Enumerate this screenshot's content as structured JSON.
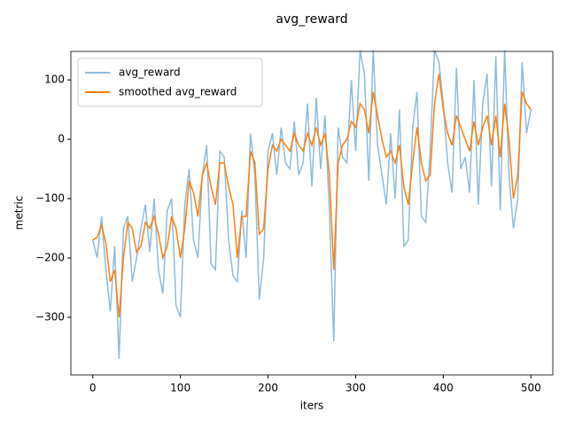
{
  "chart_data": {
    "type": "line",
    "title": "avg_reward",
    "x_label": "iters",
    "y_label": "metric",
    "x": [
      0,
      5,
      10,
      15,
      20,
      25,
      30,
      35,
      40,
      45,
      50,
      55,
      60,
      65,
      70,
      75,
      80,
      85,
      90,
      95,
      100,
      105,
      110,
      115,
      120,
      125,
      130,
      135,
      140,
      145,
      150,
      155,
      160,
      165,
      170,
      175,
      180,
      185,
      190,
      195,
      200,
      205,
      210,
      215,
      220,
      225,
      230,
      235,
      240,
      245,
      250,
      255,
      260,
      265,
      270,
      275,
      280,
      285,
      290,
      295,
      300,
      305,
      310,
      315,
      320,
      325,
      330,
      335,
      340,
      345,
      350,
      355,
      360,
      365,
      370,
      375,
      380,
      385,
      390,
      395,
      400,
      405,
      410,
      415,
      420,
      425,
      430,
      435,
      440,
      445,
      450,
      455,
      460,
      465,
      470,
      475,
      480,
      485,
      490,
      495,
      500
    ],
    "series": [
      {
        "name": "avg_reward",
        "color": "#1f77b4",
        "opacity": 0.5,
        "values": [
          -170,
          -200,
          -130,
          -220,
          -290,
          -180,
          -370,
          -150,
          -130,
          -240,
          -200,
          -150,
          -110,
          -190,
          -100,
          -220,
          -260,
          -120,
          -100,
          -280,
          -300,
          -110,
          -50,
          -170,
          -200,
          -60,
          -10,
          -210,
          -220,
          -20,
          -30,
          -170,
          -230,
          -240,
          -120,
          -200,
          10,
          -60,
          -270,
          -200,
          -20,
          10,
          -60,
          20,
          -40,
          -50,
          30,
          -60,
          -40,
          60,
          -80,
          70,
          -50,
          40,
          -120,
          -340,
          20,
          -30,
          -40,
          100,
          -20,
          150,
          110,
          -70,
          150,
          -10,
          -60,
          -110,
          10,
          -100,
          50,
          -180,
          -170,
          20,
          80,
          -130,
          -140,
          -20,
          150,
          130,
          60,
          -40,
          -90,
          120,
          -50,
          -30,
          -90,
          100,
          -110,
          60,
          110,
          -80,
          140,
          -120,
          150,
          -60,
          -150,
          -100,
          130,
          10,
          50
        ]
      },
      {
        "name": "smoothed avg_reward",
        "color": "#ff7f0e",
        "opacity": 1,
        "values": [
          -170,
          -165,
          -145,
          -175,
          -240,
          -220,
          -300,
          -200,
          -140,
          -150,
          -190,
          -180,
          -140,
          -150,
          -130,
          -160,
          -200,
          -180,
          -130,
          -150,
          -200,
          -150,
          -70,
          -90,
          -130,
          -60,
          -40,
          -80,
          -110,
          -40,
          -40,
          -80,
          -110,
          -200,
          -130,
          -130,
          -20,
          -40,
          -160,
          -150,
          -50,
          -10,
          -20,
          0,
          -10,
          -20,
          10,
          -10,
          -20,
          10,
          -10,
          20,
          -10,
          10,
          -60,
          -220,
          -40,
          -10,
          0,
          30,
          20,
          60,
          50,
          10,
          80,
          40,
          0,
          -30,
          -20,
          -40,
          -10,
          -80,
          -110,
          -40,
          20,
          -40,
          -70,
          -60,
          60,
          110,
          50,
          10,
          -10,
          40,
          20,
          0,
          -20,
          30,
          -10,
          20,
          40,
          -10,
          40,
          -30,
          60,
          0,
          -100,
          -60,
          80,
          60,
          50
        ]
      }
    ],
    "xlim": [
      -25,
      525
    ],
    "ylim": [
      -397,
      148
    ],
    "xticks": [
      0,
      100,
      200,
      300,
      400,
      500
    ],
    "yticks": [
      {
        "value": -300,
        "label": "−300"
      },
      {
        "value": -200,
        "label": "−200"
      },
      {
        "value": -100,
        "label": "−100"
      },
      0,
      100
    ],
    "legend": "upper left"
  }
}
